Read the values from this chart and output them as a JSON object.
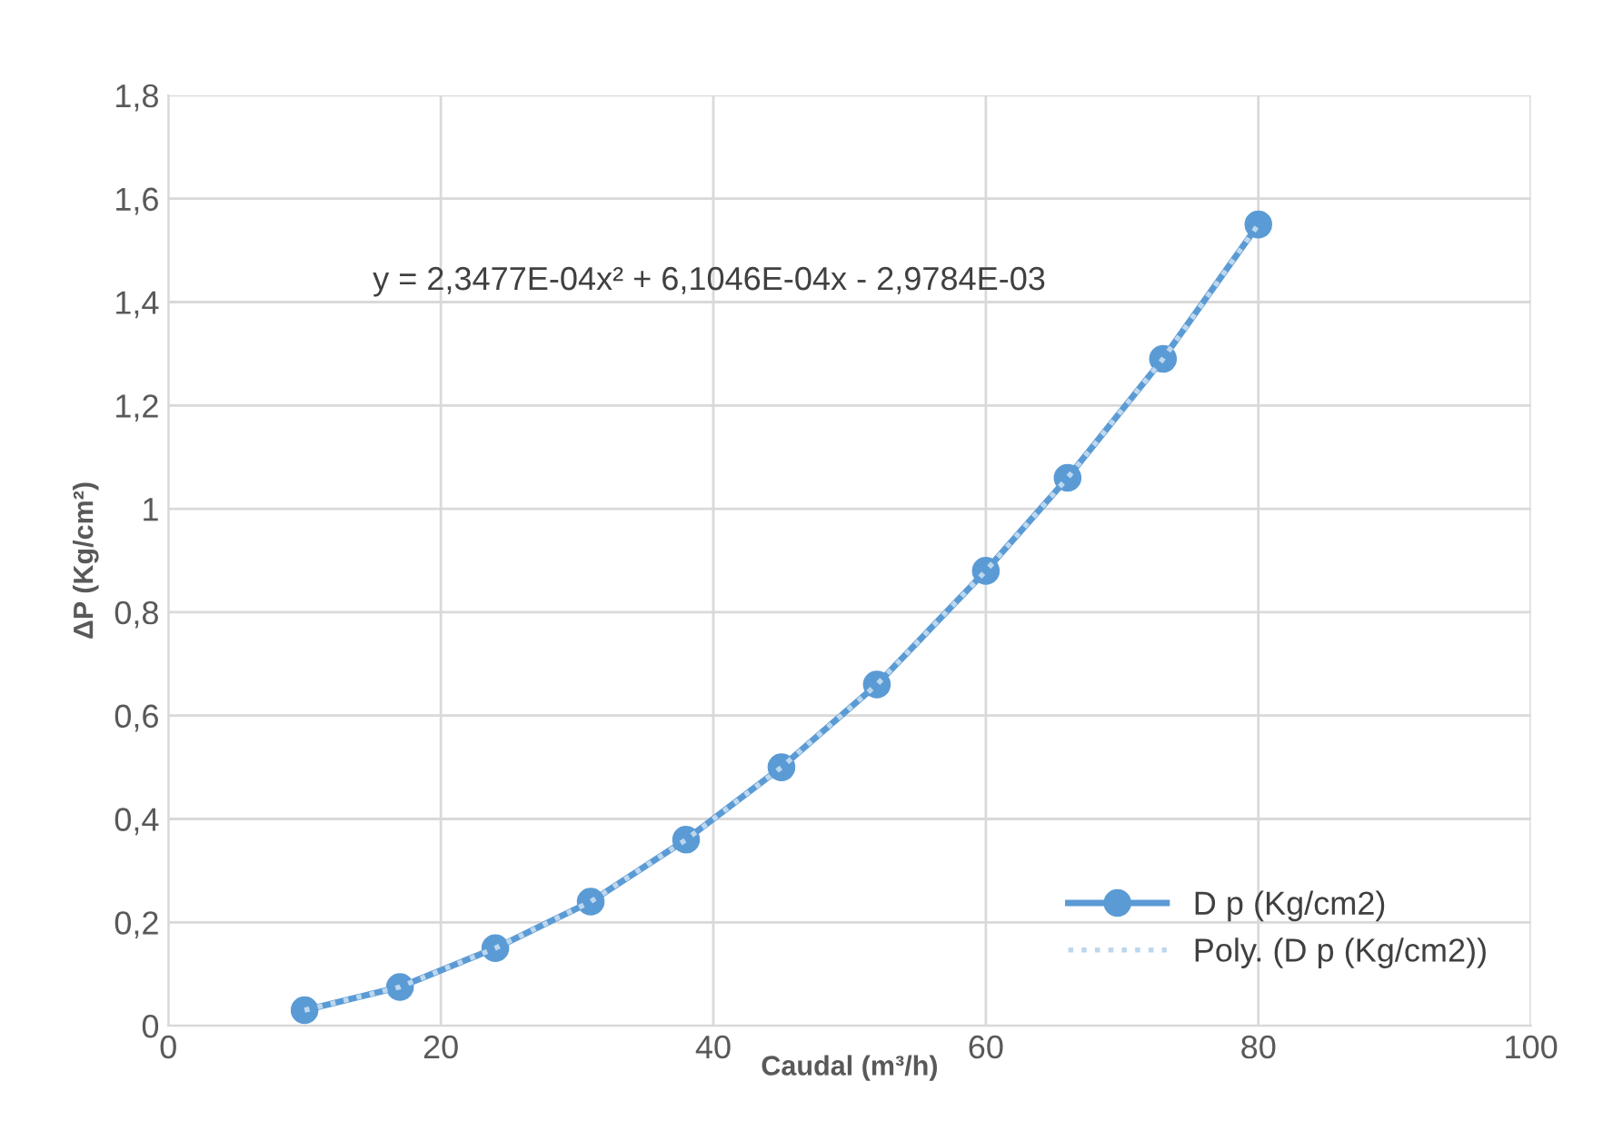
{
  "chart_data": {
    "type": "line",
    "xlabel": "Caudal (m³/h)",
    "ylabel": "ΔP (Kg/cm²)",
    "annotations": [
      "y = 2,3477E-04x² + 6,1046E-04x - 2,9784E-03"
    ],
    "series": [
      {
        "name": "D p (Kg/cm2)",
        "color": "#5b9bd5",
        "marker": "circle",
        "line_style": "solid",
        "x": [
          10,
          17,
          24,
          31,
          38,
          45,
          52,
          60,
          66,
          73,
          80
        ],
        "values": [
          0.03,
          0.075,
          0.15,
          0.24,
          0.36,
          0.5,
          0.66,
          0.88,
          1.06,
          1.29,
          1.55
        ]
      },
      {
        "name": "Poly. (D p (Kg/cm2))",
        "color": "#bdd7ee",
        "marker": "none",
        "line_style": "dotted",
        "x": [
          10,
          17,
          24,
          31,
          38,
          45,
          52,
          60,
          66,
          73,
          80
        ],
        "values": [
          0.03,
          0.075,
          0.15,
          0.24,
          0.36,
          0.5,
          0.66,
          0.88,
          1.06,
          1.29,
          1.55
        ]
      }
    ],
    "xlim": [
      0,
      100
    ],
    "xticks": [
      0,
      20,
      40,
      60,
      80,
      100
    ],
    "ylim": [
      0,
      1.8
    ],
    "yticks": [
      {
        "value": 0,
        "label": "0"
      },
      {
        "value": 0.2,
        "label": "0,2"
      },
      {
        "value": 0.4,
        "label": "0,4"
      },
      {
        "value": 0.6,
        "label": "0,6"
      },
      {
        "value": 0.8,
        "label": "0,8"
      },
      {
        "value": 1,
        "label": "1"
      },
      {
        "value": 1.2,
        "label": "1,2"
      },
      {
        "value": 1.4,
        "label": "1,4"
      },
      {
        "value": 1.6,
        "label": "1,6"
      },
      {
        "value": 1.8,
        "label": "1,8"
      }
    ],
    "grid": true,
    "legend": "bottom right"
  }
}
